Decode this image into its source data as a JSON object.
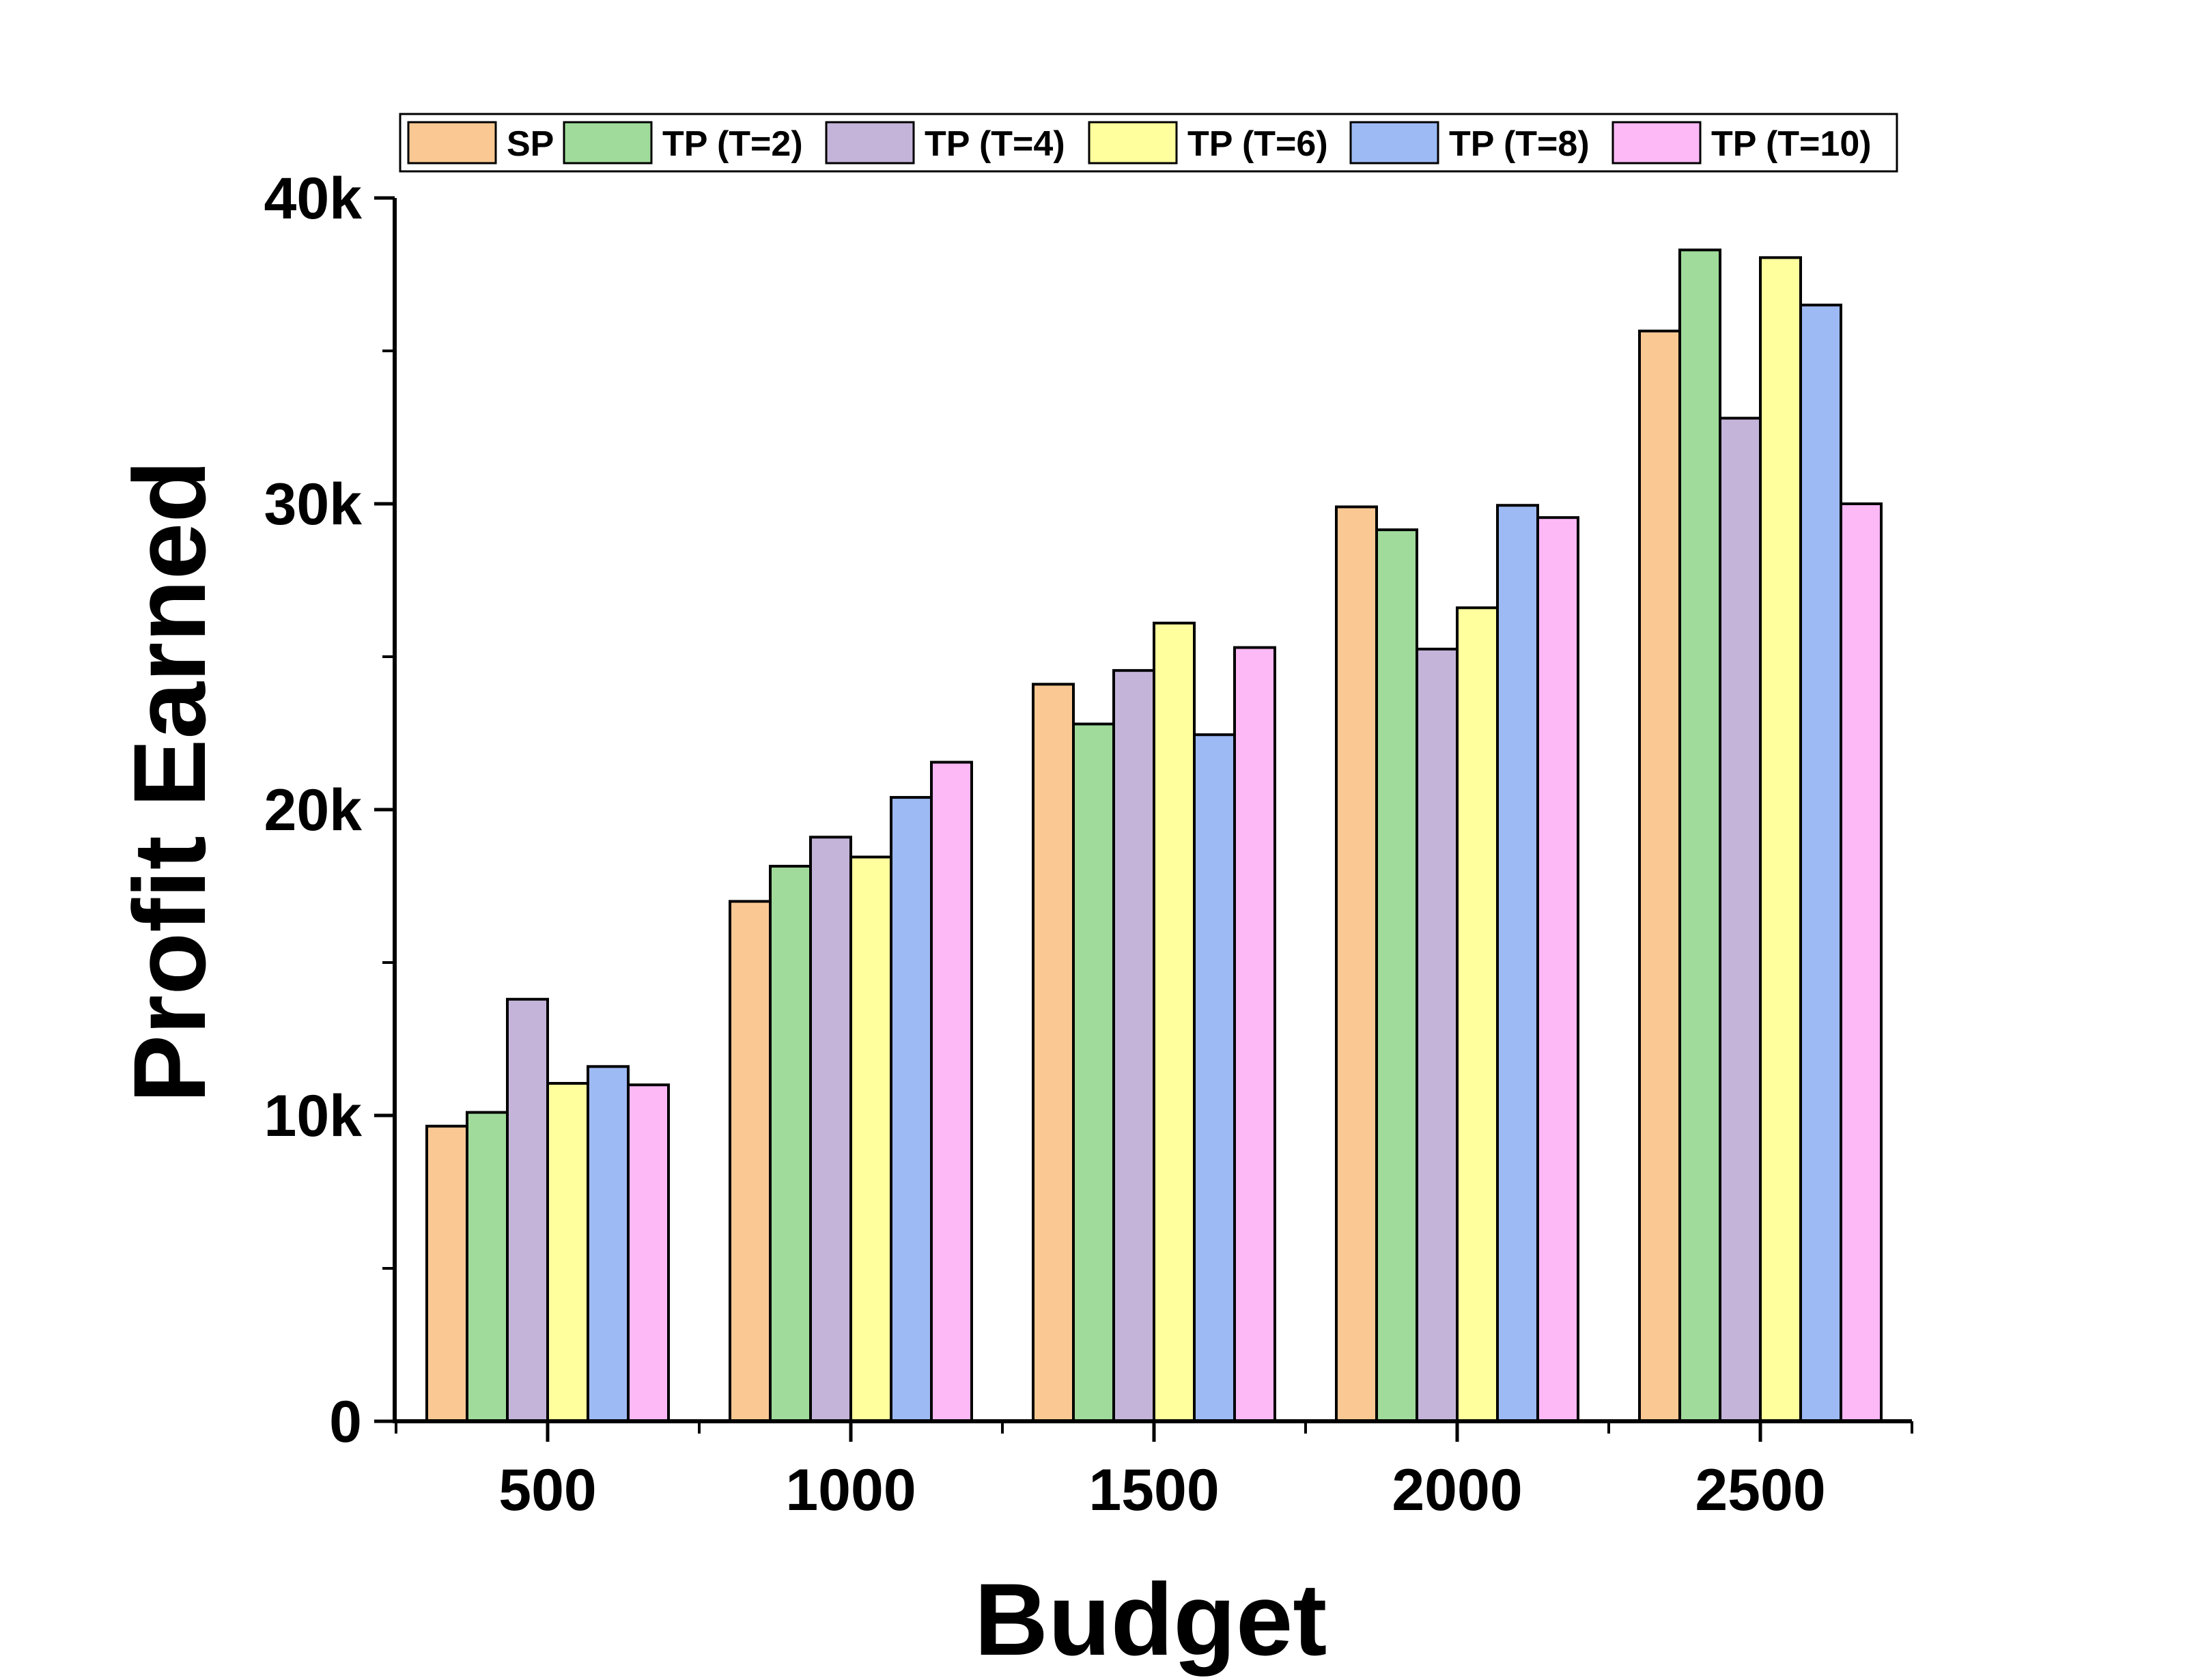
{
  "chart_data": {
    "type": "bar",
    "xlabel": "Budget",
    "ylabel": "Profit Earned",
    "categories": [
      "500",
      "1000",
      "1500",
      "2000",
      "2500"
    ],
    "ylim": [
      0,
      40000
    ],
    "yticks": [
      0,
      10000,
      20000,
      30000,
      40000
    ],
    "ytick_labels": [
      "0",
      "10k",
      "20k",
      "30k",
      "40k"
    ],
    "legend_position": "top",
    "grid": false,
    "series": [
      {
        "name": "SP",
        "color": "#FAC893",
        "values": [
          9650,
          17000,
          24100,
          29900,
          35650
        ]
      },
      {
        "name": "TP (T=2)",
        "color": "#A0DB9B",
        "values": [
          10100,
          18150,
          22800,
          29150,
          38300
        ]
      },
      {
        "name": "TP (T=4)",
        "color": "#C5B4DA",
        "values": [
          13800,
          19100,
          24550,
          25250,
          32800
        ]
      },
      {
        "name": "TP (T=6)",
        "color": "#FFFF9E",
        "values": [
          11050,
          18450,
          26100,
          26600,
          38050
        ]
      },
      {
        "name": "TP (T=8)",
        "color": "#9DBAF4",
        "values": [
          11600,
          20400,
          22450,
          29950,
          36500
        ]
      },
      {
        "name": "TP (T=10)",
        "color": "#FDB8F6",
        "values": [
          11000,
          21550,
          25300,
          29550,
          30000
        ]
      }
    ]
  }
}
